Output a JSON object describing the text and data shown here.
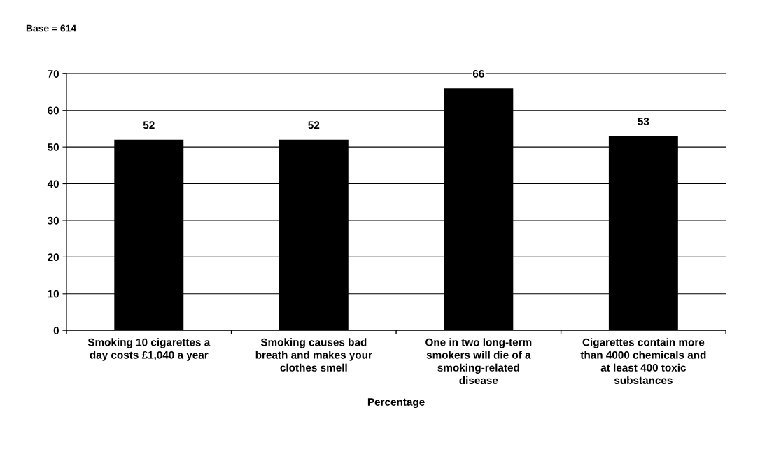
{
  "chart_data": {
    "type": "bar",
    "categories": [
      "Smoking 10 cigarettes a\nday costs £1,040 a year",
      "Smoking causes bad\nbreath and makes your\nclothes smell",
      "One in two long-term\nsmokers will die of a\nsmoking-related\ndisease",
      "Cigarettes contain more\nthan 4000 chemicals and\nat least 400 toxic\nsubstances"
    ],
    "values": [
      52,
      52,
      66,
      53
    ],
    "color": "#000000",
    "data_labels": true,
    "xlabel": "Percentage",
    "annotations": [
      "Base = 614"
    ],
    "ylim": [
      0,
      70
    ],
    "yticks": [
      0,
      10,
      20,
      30,
      40,
      50,
      60,
      70
    ],
    "grid": "y",
    "legend": false
  }
}
